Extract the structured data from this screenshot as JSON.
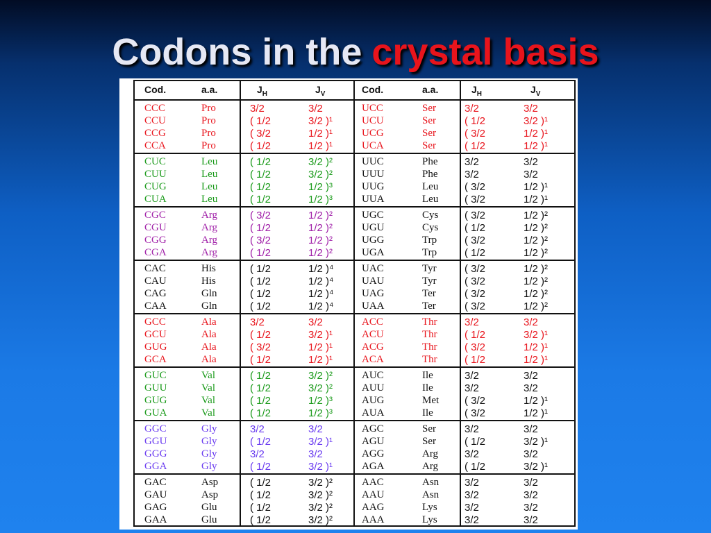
{
  "title": {
    "main": "Codons in the",
    "highlight": "crystal basis"
  },
  "table": {
    "header": [
      "Cod.",
      "a.a.",
      {
        "text": "J",
        "sub": "H"
      },
      {
        "text": "J",
        "sub": "V"
      },
      "Cod.",
      "a.a.",
      {
        "text": "J",
        "sub": "H"
      },
      {
        "text": "J",
        "sub": "V"
      }
    ],
    "groups": [
      {
        "left_color": "#e8141c",
        "right_color": "#e8141c",
        "rows": [
          [
            "CCC",
            "Pro",
            "3/2",
            "3/2",
            "UCC",
            "Ser",
            "3/2",
            "3/2"
          ],
          [
            "CCU",
            "Pro",
            "( 1/2",
            "3/2 )¹",
            "UCU",
            "Ser",
            "( 1/2",
            "3/2 )¹"
          ],
          [
            "CCG",
            "Pro",
            "( 3/2",
            "1/2 )¹",
            "UCG",
            "Ser",
            "( 3/2",
            "1/2 )¹"
          ],
          [
            "CCA",
            "Pro",
            "( 1/2",
            "1/2 )¹",
            "UCA",
            "Ser",
            "( 1/2",
            "1/2 )¹"
          ]
        ]
      },
      {
        "left_color": "#1a9a1a",
        "right_color": "#111111",
        "rows": [
          [
            "CUC",
            "Leu",
            "( 1/2",
            "3/2 )²",
            "UUC",
            "Phe",
            "3/2",
            "3/2"
          ],
          [
            "CUU",
            "Leu",
            "( 1/2",
            "3/2 )²",
            "UUU",
            "Phe",
            "3/2",
            "3/2"
          ],
          [
            "CUG",
            "Leu",
            "( 1/2",
            "1/2 )³",
            "UUG",
            "Leu",
            "( 3/2",
            "1/2 )¹"
          ],
          [
            "CUA",
            "Leu",
            "( 1/2",
            "1/2 )³",
            "UUA",
            "Leu",
            "( 3/2",
            "1/2 )¹"
          ]
        ]
      },
      {
        "left_color": "#a020a8",
        "right_color": "#111111",
        "rows": [
          [
            "CGC",
            "Arg",
            "( 3/2",
            "1/2 )²",
            "UGC",
            "Cys",
            "( 3/2",
            "1/2 )²"
          ],
          [
            "CGU",
            "Arg",
            "( 1/2",
            "1/2 )²",
            "UGU",
            "Cys",
            "( 1/2",
            "1/2 )²"
          ],
          [
            "CGG",
            "Arg",
            "( 3/2",
            "1/2 )²",
            "UGG",
            "Trp",
            "( 3/2",
            "1/2 )²"
          ],
          [
            "CGA",
            "Arg",
            "( 1/2",
            "1/2 )²",
            "UGA",
            "Trp",
            "( 1/2",
            "1/2 )²"
          ]
        ]
      },
      {
        "left_color": "#111111",
        "right_color": "#111111",
        "rows": [
          [
            "CAC",
            "His",
            "( 1/2",
            "1/2 )⁴",
            "UAC",
            "Tyr",
            "( 3/2",
            "1/2 )²"
          ],
          [
            "CAU",
            "His",
            "( 1/2",
            "1/2 )⁴",
            "UAU",
            "Tyr",
            "( 3/2",
            "1/2 )²"
          ],
          [
            "CAG",
            "Gln",
            "( 1/2",
            "1/2 )⁴",
            "UAG",
            "Ter",
            "( 3/2",
            "1/2 )²"
          ],
          [
            "CAA",
            "Gln",
            "( 1/2",
            "1/2 )⁴",
            "UAA",
            "Ter",
            "( 3/2",
            "1/2 )²"
          ]
        ]
      },
      {
        "left_color": "#e8141c",
        "right_color": "#e8141c",
        "rows": [
          [
            "GCC",
            "Ala",
            "3/2",
            "3/2",
            "ACC",
            "Thr",
            "3/2",
            "3/2"
          ],
          [
            "GCU",
            "Ala",
            "( 1/2",
            "3/2 )¹",
            "ACU",
            "Thr",
            "( 1/2",
            "3/2 )¹"
          ],
          [
            "GUG",
            "Ala",
            "( 3/2",
            "1/2 )¹",
            "ACG",
            "Thr",
            "( 3/2",
            "1/2 )¹"
          ],
          [
            "GCA",
            "Ala",
            "( 1/2",
            "1/2 )¹",
            "ACA",
            "Thr",
            "( 1/2",
            "1/2 )¹"
          ]
        ]
      },
      {
        "left_color": "#1a9a1a",
        "right_color": "#111111",
        "rows": [
          [
            "GUC",
            "Val",
            "( 1/2",
            "3/2 )²",
            "AUC",
            "Ile",
            "3/2",
            "3/2"
          ],
          [
            "GUU",
            "Val",
            "( 1/2",
            "3/2 )²",
            "AUU",
            "Ile",
            "3/2",
            "3/2"
          ],
          [
            "GUG",
            "Val",
            "( 1/2",
            "1/2 )³",
            "AUG",
            "Met",
            "( 3/2",
            "1/2 )¹"
          ],
          [
            "GUA",
            "Val",
            "( 1/2",
            "1/2 )³",
            "AUA",
            "Ile",
            "( 3/2",
            "1/2 )¹"
          ]
        ]
      },
      {
        "left_color": "#6a3cf0",
        "right_color": "#111111",
        "rows": [
          [
            "GGC",
            "Gly",
            "3/2",
            "3/2",
            "AGC",
            "Ser",
            "3/2",
            "3/2"
          ],
          [
            "GGU",
            "Gly",
            "( 1/2",
            "3/2 )¹",
            "AGU",
            "Ser",
            "( 1/2",
            "3/2 )¹"
          ],
          [
            "GGG",
            "Gly",
            "3/2",
            "3/2",
            "AGG",
            "Arg",
            "3/2",
            "3/2"
          ],
          [
            "GGA",
            "Gly",
            "( 1/2",
            "3/2 )¹",
            "AGA",
            "Arg",
            "( 1/2",
            "3/2 )¹"
          ]
        ]
      },
      {
        "left_color": "#111111",
        "right_color": "#111111",
        "rows": [
          [
            "GAC",
            "Asp",
            "( 1/2",
            "3/2 )²",
            "AAC",
            "Asn",
            "3/2",
            "3/2"
          ],
          [
            "GAU",
            "Asp",
            "( 1/2",
            "3/2 )²",
            "AAU",
            "Asn",
            "3/2",
            "3/2"
          ],
          [
            "GAG",
            "Glu",
            "( 1/2",
            "3/2 )²",
            "AAG",
            "Lys",
            "3/2",
            "3/2"
          ],
          [
            "GAA",
            "Glu",
            "( 1/2",
            "3/2 )²",
            "AAA",
            "Lys",
            "3/2",
            "3/2"
          ]
        ]
      }
    ]
  }
}
